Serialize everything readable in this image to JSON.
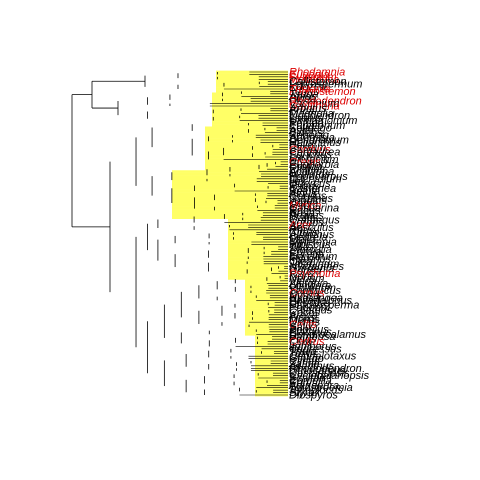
{
  "figure": {
    "kind": "phylogenetic-tree",
    "branch_color": "#000000",
    "highlight_color": "#ffff66",
    "label_color_default": "#000000",
    "label_color_highlight": "#dd0000"
  },
  "tip_labels": [
    {
      "text": "Rhodamnia",
      "red": true
    },
    {
      "text": "Eugenia",
      "red": true
    },
    {
      "text": "Syzygium",
      "red": true
    },
    {
      "text": "Melaleuca",
      "red": true
    },
    {
      "text": "Callistemon",
      "red": false
    },
    {
      "text": "Leptospermum",
      "red": false
    },
    {
      "text": "Kunzea",
      "red": false
    },
    {
      "text": "Tristania",
      "red": true
    },
    {
      "text": "Lophostemon",
      "red": true
    },
    {
      "text": "Tsuga",
      "red": false
    },
    {
      "text": "Abies",
      "red": false
    },
    {
      "text": "Picea",
      "red": false
    },
    {
      "text": "Rhododendron",
      "red": true
    },
    {
      "text": "Vaccinium",
      "red": false
    },
    {
      "text": "Gaultheria",
      "red": true
    },
    {
      "text": "Arbutus",
      "red": false
    },
    {
      "text": "Erica",
      "red": false
    },
    {
      "text": "Magnolia",
      "red": false
    },
    {
      "text": "Liriodendron",
      "red": false
    },
    {
      "text": "Laurus",
      "red": false
    },
    {
      "text": "Cinnamomum",
      "red": false
    },
    {
      "text": "Persea",
      "red": false
    },
    {
      "text": "Eupatorium",
      "red": false
    },
    {
      "text": "Solidago",
      "red": false
    },
    {
      "text": "Aster",
      "red": false
    },
    {
      "text": "Bidens",
      "red": false
    },
    {
      "text": "Senecio",
      "red": false
    },
    {
      "text": "Artemisia",
      "red": false
    },
    {
      "text": "Dendrobium",
      "red": false
    },
    {
      "text": "Helianthus",
      "red": false
    },
    {
      "text": "Bellis",
      "red": false
    },
    {
      "text": "Cirsium",
      "red": false
    },
    {
      "text": "Carduus",
      "red": true
    },
    {
      "text": "Centaurea",
      "red": false
    },
    {
      "text": "Sonchus",
      "red": false
    },
    {
      "text": "Lactuca",
      "red": false
    },
    {
      "text": "Hieracium",
      "red": false
    },
    {
      "text": "Crepis",
      "red": true
    },
    {
      "text": "Euphorbia",
      "red": false
    },
    {
      "text": "Croton",
      "red": false
    },
    {
      "text": "Ricinus",
      "red": false
    },
    {
      "text": "Acalypha",
      "red": false
    },
    {
      "text": "Mallotus",
      "red": false
    },
    {
      "text": "Podocarpus",
      "red": false
    },
    {
      "text": "Dacrydium",
      "red": false
    },
    {
      "text": "Ilex",
      "red": false
    },
    {
      "text": "Quercus",
      "red": false
    },
    {
      "text": "Fagus",
      "red": false
    },
    {
      "text": "Castanea",
      "red": false
    },
    {
      "text": "Betula",
      "red": false
    },
    {
      "text": "Alnus",
      "red": false
    },
    {
      "text": "Corylus",
      "red": false
    },
    {
      "text": "Carpinus",
      "red": false
    },
    {
      "text": "Juglans",
      "red": false
    },
    {
      "text": "Carya",
      "red": false
    },
    {
      "text": "Myrica",
      "red": true
    },
    {
      "text": "Casuarina",
      "red": false
    },
    {
      "text": "Rubus",
      "red": false
    },
    {
      "text": "Rosa",
      "red": false
    },
    {
      "text": "Prunus",
      "red": false
    },
    {
      "text": "Malus",
      "red": false
    },
    {
      "text": "Crataegus",
      "red": false
    },
    {
      "text": "Sorbus",
      "red": false
    },
    {
      "text": "Acer",
      "red": true
    },
    {
      "text": "Aesculus",
      "red": false
    },
    {
      "text": "Rhus",
      "red": false
    },
    {
      "text": "Citrus",
      "red": false
    },
    {
      "text": "Ailanthus",
      "red": false
    },
    {
      "text": "Cedrela",
      "red": false
    },
    {
      "text": "Melia",
      "red": false
    },
    {
      "text": "Swietenia",
      "red": false
    },
    {
      "text": "Hibiscus",
      "red": false
    },
    {
      "text": "Tilia",
      "red": false
    },
    {
      "text": "Sterculia",
      "red": false
    },
    {
      "text": "Cordia",
      "red": false
    },
    {
      "text": "Ehretia",
      "red": false
    },
    {
      "text": "Ligustrum",
      "red": false
    },
    {
      "text": "Fraxinus",
      "red": false
    },
    {
      "text": "Olea",
      "red": false
    },
    {
      "text": "Jasminum",
      "red": false
    },
    {
      "text": "Nyctanthes",
      "red": false
    },
    {
      "text": "Gardenia",
      "red": false
    },
    {
      "text": "Coffea",
      "red": false
    },
    {
      "text": "Psychotria",
      "red": true
    },
    {
      "text": "Ixora",
      "red": false
    },
    {
      "text": "Nerium",
      "red": false
    },
    {
      "text": "Vinca",
      "red": false
    },
    {
      "text": "Alstonia",
      "red": false
    },
    {
      "text": "Lonicera",
      "red": false
    },
    {
      "text": "Viburnum",
      "red": false
    },
    {
      "text": "Sambucus",
      "red": false
    },
    {
      "text": "Cornus",
      "red": true
    },
    {
      "text": "Nyssa",
      "red": false
    },
    {
      "text": "Hydrangea",
      "red": false
    },
    {
      "text": "Philadelphus",
      "red": false
    },
    {
      "text": "Deutzia",
      "red": false
    },
    {
      "text": "Ptychosperma",
      "red": false
    },
    {
      "text": "Phoenix",
      "red": false
    },
    {
      "text": "Calamus",
      "red": false
    },
    {
      "text": "Cocos",
      "red": false
    },
    {
      "text": "Areca",
      "red": false
    },
    {
      "text": "Ficus",
      "red": false
    },
    {
      "text": "Morus",
      "red": false
    },
    {
      "text": "Ulmus",
      "red": false
    },
    {
      "text": "Celtis",
      "red": true
    },
    {
      "text": "Salix",
      "red": false
    },
    {
      "text": "Populus",
      "red": false
    },
    {
      "text": "Platanus",
      "red": false
    },
    {
      "text": "Dendrocalamus",
      "red": false
    },
    {
      "text": "Bambusa",
      "red": false
    },
    {
      "text": "Pinus",
      "red": false
    },
    {
      "text": "Cedrus",
      "red": true
    },
    {
      "text": "Larix",
      "red": false
    },
    {
      "text": "Juniperus",
      "red": false
    },
    {
      "text": "Cupressus",
      "red": false
    },
    {
      "text": "Thuja",
      "red": false
    },
    {
      "text": "Taxus",
      "red": false
    },
    {
      "text": "Cephalotaxus",
      "red": false
    },
    {
      "text": "Ginkgo",
      "red": false
    },
    {
      "text": "Cycas",
      "red": false
    },
    {
      "text": "Zamia",
      "red": false
    },
    {
      "text": "Ailanthus",
      "red": false
    },
    {
      "text": "Rhododendron",
      "red": false
    },
    {
      "text": "Lithocarpus",
      "red": false
    },
    {
      "text": "Castanopsis",
      "red": false
    },
    {
      "text": "Cyclobalanopsis",
      "red": false
    },
    {
      "text": "Schima",
      "red": false
    },
    {
      "text": "Camellia",
      "red": false
    },
    {
      "text": "Eurya",
      "red": false
    },
    {
      "text": "Adinandra",
      "red": false
    },
    {
      "text": "Ternstroemia",
      "red": false
    },
    {
      "text": "Symplocos",
      "red": false
    },
    {
      "text": "Styrax",
      "red": false
    },
    {
      "text": "Diospyros",
      "red": false
    }
  ]
}
